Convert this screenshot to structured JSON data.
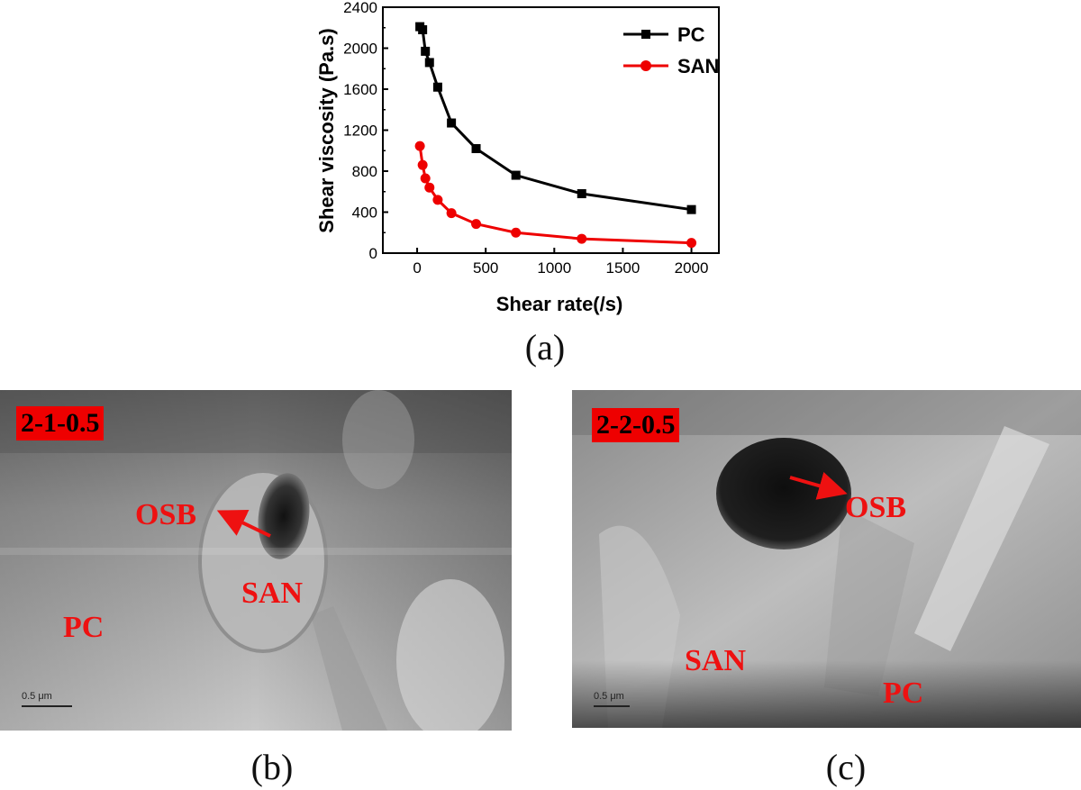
{
  "chart_data": {
    "type": "line",
    "xlabel": "Shear rate(/s)",
    "ylabel": "Shear viscosity (Pa.s)",
    "xlim": [
      -250,
      2200
    ],
    "ylim": [
      0,
      2400
    ],
    "x_ticks": [
      0,
      500,
      1000,
      1500,
      2000
    ],
    "y_ticks": [
      0,
      400,
      800,
      1200,
      1600,
      2000,
      2400
    ],
    "legend_position": "top-right",
    "series": [
      {
        "name": "PC",
        "color": "#000000",
        "marker": "square",
        "x": [
          20,
          40,
          60,
          90,
          150,
          250,
          430,
          720,
          1200,
          2000
        ],
        "y": [
          2210,
          2180,
          1970,
          1860,
          1620,
          1270,
          1020,
          760,
          580,
          425
        ]
      },
      {
        "name": "SAN",
        "color": "#ee0000",
        "marker": "circle",
        "x": [
          20,
          40,
          60,
          90,
          150,
          250,
          430,
          720,
          1200,
          2000
        ],
        "y": [
          1045,
          860,
          730,
          640,
          520,
          390,
          285,
          200,
          140,
          100
        ]
      }
    ]
  },
  "captions": {
    "a": "(a)",
    "b": "(b)",
    "c": "(c)"
  },
  "micrograph_b": {
    "tag": "2-1-0.5",
    "label_osb": "OSB",
    "label_san": "SAN",
    "label_pc": "PC",
    "scale": "0.5 μm",
    "tag_color": "#ee0000",
    "label_color": "#ee1111"
  },
  "micrograph_c": {
    "tag": "2-2-0.5",
    "label_osb": "OSB",
    "label_san": "SAN",
    "label_pc": "PC",
    "scale": "0.5 μm"
  }
}
